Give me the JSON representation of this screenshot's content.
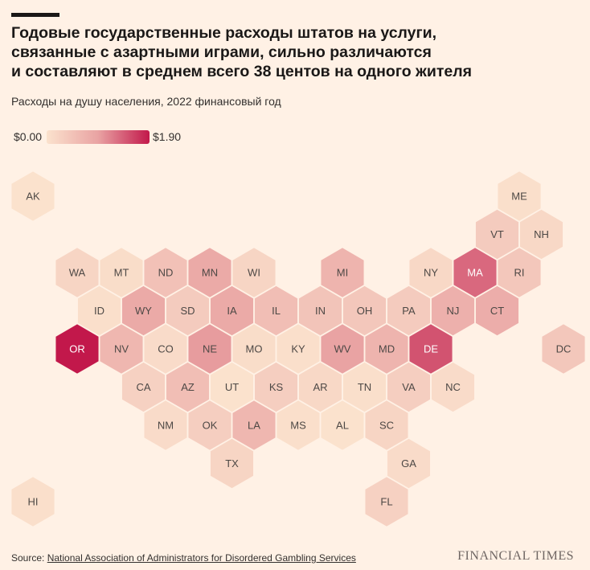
{
  "title_lines": [
    "Годовые государственные расходы штатов на услуги,",
    "связанные с азартными играми, сильно различаются",
    "и составляют в среднем всего 38 центов на одного жителя"
  ],
  "subtitle": "Расходы на душу населения, 2022 финансовый год",
  "legend": {
    "min_label": "$0.00",
    "max_label": "$1.90",
    "min": 0,
    "max": 1.9
  },
  "colors": {
    "low": "#fbe2cd",
    "mid": "#e9a3a3",
    "high": "#c2184b",
    "background": "#fff1e5"
  },
  "chart_data": {
    "type": "heatmap",
    "title": "Годовые государственные расходы штатов на услуги, связанные с азартными играми, сильно различаются и составляют в среднем всего 38 центов на одного жителя",
    "subtitle": "Расходы на душу населения, 2022 финансовый год",
    "unit": "USD per capita",
    "range": [
      0,
      1.9
    ],
    "layout": "hexagon tile map of US states",
    "states": [
      {
        "code": "AK",
        "row": 0,
        "col": 0,
        "value": 0.0
      },
      {
        "code": "ME",
        "row": 0,
        "col": 11,
        "value": 0.05
      },
      {
        "code": "VT",
        "row": 1,
        "col": 10,
        "value": 0.35
      },
      {
        "code": "NH",
        "row": 1,
        "col": 11,
        "value": 0.15
      },
      {
        "code": "WA",
        "row": 2,
        "col": 1,
        "value": 0.2
      },
      {
        "code": "MT",
        "row": 2,
        "col": 2,
        "value": 0.08
      },
      {
        "code": "ND",
        "row": 2,
        "col": 3,
        "value": 0.5
      },
      {
        "code": "MN",
        "row": 2,
        "col": 4,
        "value": 0.85
      },
      {
        "code": "WI",
        "row": 2,
        "col": 5,
        "value": 0.2
      },
      {
        "code": "MI",
        "row": 2,
        "col": 7,
        "value": 0.7
      },
      {
        "code": "NY",
        "row": 2,
        "col": 9,
        "value": 0.15
      },
      {
        "code": "MA",
        "row": 2,
        "col": 10,
        "value": 1.35
      },
      {
        "code": "RI",
        "row": 2,
        "col": 11,
        "value": 0.4
      },
      {
        "code": "ID",
        "row": 3,
        "col": 1,
        "value": 0.05
      },
      {
        "code": "WY",
        "row": 3,
        "col": 2,
        "value": 0.85
      },
      {
        "code": "SD",
        "row": 3,
        "col": 3,
        "value": 0.35
      },
      {
        "code": "IA",
        "row": 3,
        "col": 4,
        "value": 0.85
      },
      {
        "code": "IL",
        "row": 3,
        "col": 5,
        "value": 0.55
      },
      {
        "code": "IN",
        "row": 3,
        "col": 6,
        "value": 0.45
      },
      {
        "code": "OH",
        "row": 3,
        "col": 7,
        "value": 0.4
      },
      {
        "code": "PA",
        "row": 3,
        "col": 8,
        "value": 0.35
      },
      {
        "code": "NJ",
        "row": 3,
        "col": 9,
        "value": 0.75
      },
      {
        "code": "CT",
        "row": 3,
        "col": 10,
        "value": 0.8
      },
      {
        "code": "OR",
        "row": 4,
        "col": 1,
        "value": 1.9
      },
      {
        "code": "NV",
        "row": 4,
        "col": 2,
        "value": 0.65
      },
      {
        "code": "CO",
        "row": 4,
        "col": 3,
        "value": 0.1
      },
      {
        "code": "NE",
        "row": 4,
        "col": 4,
        "value": 1.0
      },
      {
        "code": "MO",
        "row": 4,
        "col": 5,
        "value": 0.08
      },
      {
        "code": "KY",
        "row": 4,
        "col": 6,
        "value": 0.05
      },
      {
        "code": "WV",
        "row": 4,
        "col": 7,
        "value": 0.95
      },
      {
        "code": "MD",
        "row": 4,
        "col": 8,
        "value": 0.7
      },
      {
        "code": "DE",
        "row": 4,
        "col": 9,
        "value": 1.5
      },
      {
        "code": "DC",
        "row": 4,
        "col": 12,
        "value": 0.4
      },
      {
        "code": "CA",
        "row": 5,
        "col": 2,
        "value": 0.25
      },
      {
        "code": "AZ",
        "row": 5,
        "col": 3,
        "value": 0.55
      },
      {
        "code": "UT",
        "row": 5,
        "col": 4,
        "value": 0.0
      },
      {
        "code": "KS",
        "row": 5,
        "col": 5,
        "value": 0.3
      },
      {
        "code": "AR",
        "row": 5,
        "col": 6,
        "value": 0.15
      },
      {
        "code": "TN",
        "row": 5,
        "col": 7,
        "value": 0.05
      },
      {
        "code": "VA",
        "row": 5,
        "col": 8,
        "value": 0.3
      },
      {
        "code": "NC",
        "row": 5,
        "col": 9,
        "value": 0.1
      },
      {
        "code": "NM",
        "row": 6,
        "col": 3,
        "value": 0.1
      },
      {
        "code": "OK",
        "row": 6,
        "col": 4,
        "value": 0.3
      },
      {
        "code": "LA",
        "row": 6,
        "col": 5,
        "value": 0.65
      },
      {
        "code": "MS",
        "row": 6,
        "col": 6,
        "value": 0.05
      },
      {
        "code": "AL",
        "row": 6,
        "col": 7,
        "value": 0.0
      },
      {
        "code": "SC",
        "row": 6,
        "col": 8,
        "value": 0.2
      },
      {
        "code": "TX",
        "row": 7,
        "col": 4,
        "value": 0.2
      },
      {
        "code": "GA",
        "row": 7,
        "col": 8,
        "value": 0.1
      },
      {
        "code": "HI",
        "row": 8,
        "col": 0,
        "value": 0.05
      },
      {
        "code": "FL",
        "row": 8,
        "col": 8,
        "value": 0.25
      }
    ]
  },
  "source": {
    "label": "Source: ",
    "link_text": "National Association of Administrators for Disordered Gambling Services"
  },
  "brand": "FINANCIAL TIMES"
}
